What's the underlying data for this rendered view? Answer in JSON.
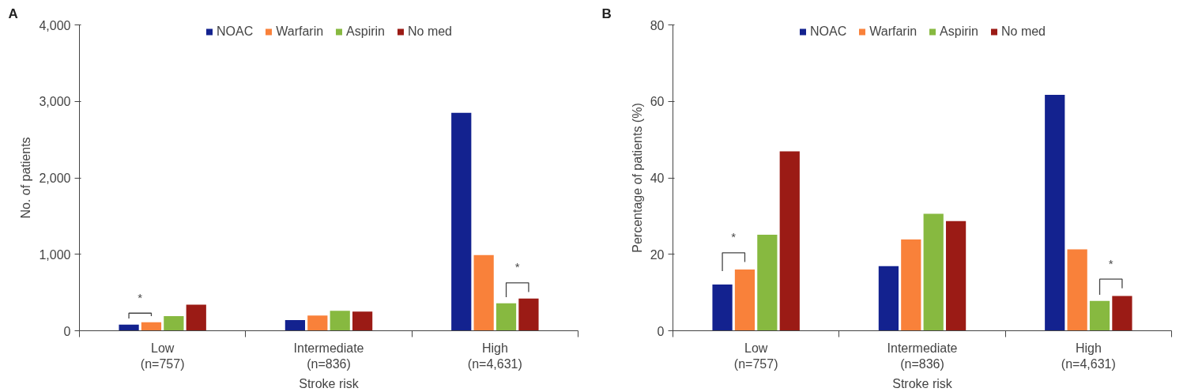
{
  "chart_data": [
    {
      "type": "bar",
      "title": "A",
      "xlabel": "Stroke risk",
      "ylabel": "No. of patients",
      "categories": [
        "Low\n(n=757)",
        "Intermediate\n(n=836)",
        "High\n(n=4,631)"
      ],
      "series": [
        {
          "name": "NOAC",
          "color": "#13228f",
          "values": [
            80,
            140,
            2850
          ]
        },
        {
          "name": "Warfarin",
          "color": "#f9813a",
          "values": [
            110,
            200,
            990
          ]
        },
        {
          "name": "Aspirin",
          "color": "#87b940",
          "values": [
            190,
            260,
            360
          ]
        },
        {
          "name": "No med",
          "color": "#9b1b15",
          "values": [
            340,
            250,
            420
          ]
        }
      ],
      "ylim": [
        0,
        4000
      ],
      "yticks": [
        {
          "value": 0,
          "label": "0"
        },
        {
          "value": 1000,
          "label": "1,000"
        },
        {
          "value": 2000,
          "label": "2,000"
        },
        {
          "value": 3000,
          "label": "3,000"
        },
        {
          "value": 4000,
          "label": "4,000"
        }
      ],
      "annotations": [
        {
          "text": "*",
          "x": "Low\n(n=757)",
          "y": 230
        },
        {
          "text": "*",
          "x": "High\n(n=4,631)",
          "y": 627
        }
      ],
      "legend": "top",
      "grid": false
    },
    {
      "type": "bar",
      "title": "B",
      "xlabel": "Stroke risk",
      "ylabel": "Percentage of patients (%)",
      "categories": [
        "Low\n(n=757)",
        "Intermediate\n(n=836)",
        "High\n(n=4,631)"
      ],
      "series": [
        {
          "name": "NOAC",
          "color": "#13228f",
          "values": [
            12.1,
            16.9,
            61.7
          ]
        },
        {
          "name": "Warfarin",
          "color": "#f9813a",
          "values": [
            16.0,
            23.9,
            21.3
          ]
        },
        {
          "name": "Aspirin",
          "color": "#87b940",
          "values": [
            25.1,
            30.6,
            7.8
          ]
        },
        {
          "name": "No med",
          "color": "#9b1b15",
          "values": [
            46.9,
            28.7,
            9.1
          ]
        }
      ],
      "ylim": [
        0,
        80
      ],
      "yticks": [
        0,
        20,
        40,
        60,
        80
      ],
      "annotations": [
        {
          "text": "*",
          "x": "Low\n(n=757)",
          "y": 20.4
        },
        {
          "text": "*",
          "x": "High\n(n=4,631)",
          "y": 13.5
        }
      ],
      "legend": "top",
      "grid": false
    }
  ]
}
